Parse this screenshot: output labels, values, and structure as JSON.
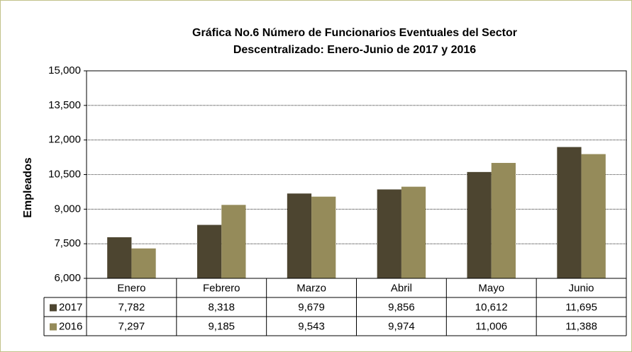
{
  "chart_data": {
    "type": "bar",
    "title": [
      "Gráfica No.6 Número de Funcionarios Eventuales del Sector",
      "Descentralizado: Enero-Junio de 2017 y 2016"
    ],
    "y_label": "Empleados",
    "categories": [
      "Enero",
      "Febrero",
      "Marzo",
      "Abril",
      "Mayo",
      "Junio"
    ],
    "series": [
      {
        "name": "2017",
        "color": "#4d4530",
        "values": [
          7782,
          8318,
          9679,
          9856,
          10612,
          11695
        ],
        "value_labels": [
          "7,782",
          "8,318",
          "9,679",
          "9,856",
          "10,612",
          "11,695"
        ]
      },
      {
        "name": "2016",
        "color": "#958b5a",
        "values": [
          7297,
          9185,
          9543,
          9974,
          11006,
          11388
        ],
        "value_labels": [
          "7,297",
          "9,185",
          "9,543",
          "9,974",
          "11,006",
          "11,388"
        ]
      }
    ],
    "ylim": [
      6000,
      15000
    ],
    "yticks": [
      {
        "value": 6000,
        "label": "6,000"
      },
      {
        "value": 7500,
        "label": "7,500"
      },
      {
        "value": 9000,
        "label": "9,000"
      },
      {
        "value": 10500,
        "label": "10,500"
      },
      {
        "value": 12000,
        "label": "12,000"
      },
      {
        "value": 13500,
        "label": "13,500"
      },
      {
        "value": 15000,
        "label": "15,000"
      }
    ],
    "grid": true
  }
}
